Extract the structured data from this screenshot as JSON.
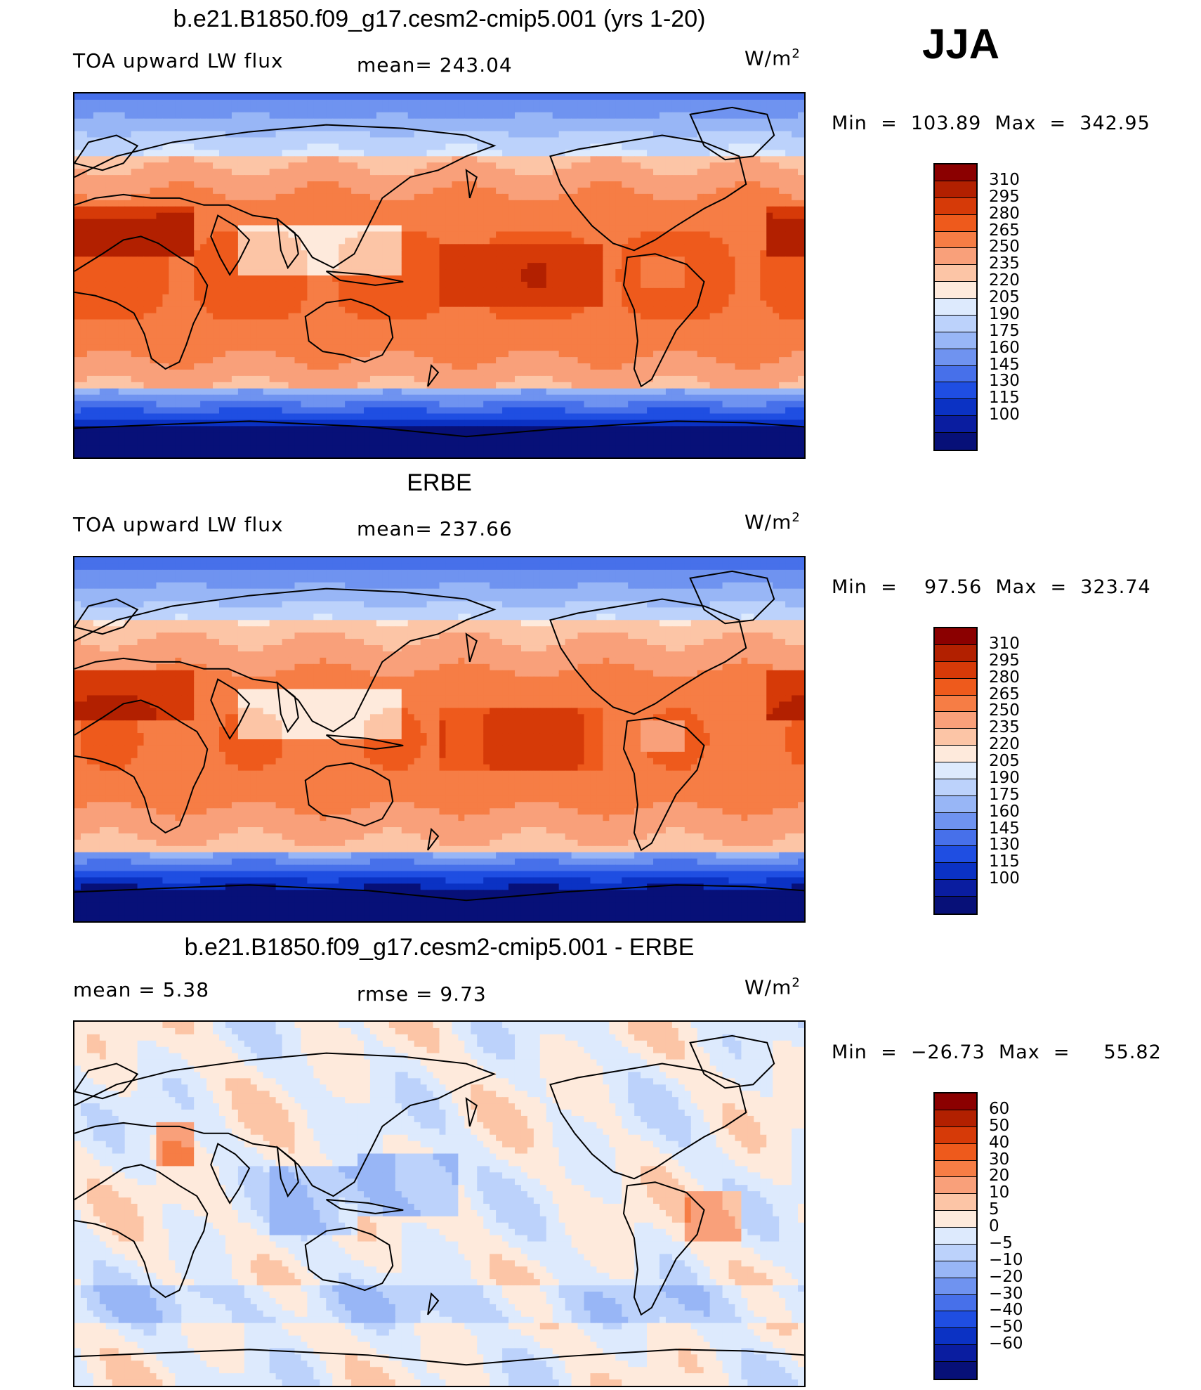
{
  "season": "JJA",
  "panels": [
    {
      "title": "b.e21.B1850.f09_g17.cesm2-cmip5.001 (yrs 1-20)",
      "left": "TOA upward LW flux",
      "center": "mean= 243.04",
      "units_base": "W/m",
      "units_exp": "2",
      "minmax": "Min  =  103.89  Max  =  342.95",
      "colors": [
        "#8b0000",
        "#b22000",
        "#d63a08",
        "#ee5a1c",
        "#f67d45",
        "#f9a07a",
        "#fcc5a6",
        "#feeadc",
        "#ddeafd",
        "#bcd2fb",
        "#98b6f6",
        "#6f93f0",
        "#4770ea",
        "#1f4ee2",
        "#0b32c4",
        "#0a1da0",
        "#071078"
      ],
      "labels": [
        "310",
        "295",
        "280",
        "265",
        "250",
        "235",
        "220",
        "205",
        "190",
        "175",
        "160",
        "145",
        "130",
        "115",
        "100"
      ],
      "field": "model"
    },
    {
      "title": "ERBE",
      "left": "TOA upward LW flux",
      "center": "mean= 237.66",
      "units_base": "W/m",
      "units_exp": "2",
      "minmax": "Min  =    97.56  Max  =  323.74",
      "colors": [
        "#8b0000",
        "#b22000",
        "#d63a08",
        "#ee5a1c",
        "#f67d45",
        "#f9a07a",
        "#fcc5a6",
        "#feeadc",
        "#ddeafd",
        "#bcd2fb",
        "#98b6f6",
        "#6f93f0",
        "#4770ea",
        "#1f4ee2",
        "#0b32c4",
        "#0a1da0",
        "#071078"
      ],
      "labels": [
        "310",
        "295",
        "280",
        "265",
        "250",
        "235",
        "220",
        "205",
        "190",
        "175",
        "160",
        "145",
        "130",
        "115",
        "100"
      ],
      "field": "obs"
    },
    {
      "title": "b.e21.B1850.f09_g17.cesm2-cmip5.001 - ERBE",
      "left": "mean  =       5.38",
      "center": "rmse  =       9.73",
      "units_base": "W/m",
      "units_exp": "2",
      "minmax": "Min  =  −26.73  Max  =     55.82",
      "colors": [
        "#8b0000",
        "#b22000",
        "#d63a08",
        "#ee5a1c",
        "#f67d45",
        "#f9a07a",
        "#fcc5a6",
        "#feeadc",
        "#ddeafd",
        "#bcd2fb",
        "#98b6f6",
        "#6f93f0",
        "#4770ea",
        "#1f4ee2",
        "#0b32c4",
        "#0a1da0",
        "#071078"
      ],
      "labels": [
        "60",
        "50",
        "40",
        "30",
        "20",
        "10",
        "5",
        "0",
        "−5",
        "−10",
        "−20",
        "−30",
        "−40",
        "−50",
        "−60"
      ],
      "field": "diff"
    }
  ]
}
